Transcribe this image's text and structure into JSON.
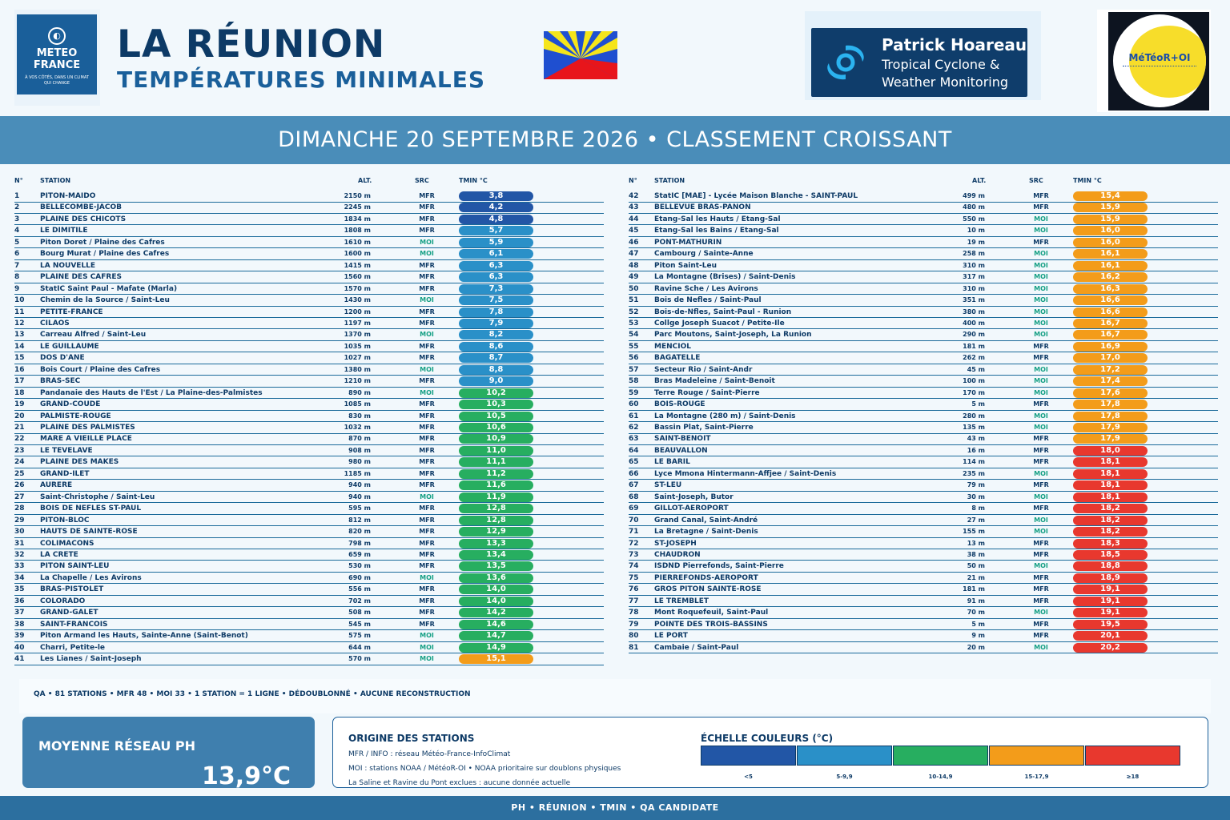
{
  "header": {
    "title": "LA RÉUNION",
    "subtitle": "TEMPÉRATURES MINIMALES",
    "meteo_france": {
      "line1": "METEO",
      "line2": "FRANCE",
      "tagline": "À VOS CÔTÉS, DANS UN CLIMAT QUI CHANGE"
    },
    "ph_logo": {
      "name": "Patrick Hoareau",
      "line2": "Tropical Cyclone &",
      "line3": "Weather Monitoring"
    },
    "moi_logo": "MéTéoR+OI"
  },
  "band_title": "DIMANCHE 20 SEPTEMBRE 2026 • CLASSEMENT CROISSANT",
  "columns": {
    "n": "N°",
    "station": "STATION",
    "alt": "ALT.",
    "src": "SRC",
    "tmin": "TMIN °C"
  },
  "colors": {
    "lt5": "#2256a6",
    "5to10": "#2a90c8",
    "10to15": "#27ae60",
    "15to18": "#f39c1a",
    "ge18": "#e8382e",
    "moi_text": "#16a085"
  },
  "stations": [
    [
      "1",
      "PITON-MAIDO",
      "2150 m",
      "MFR",
      "3,8",
      3.8
    ],
    [
      "2",
      "BELLECOMBE-JACOB",
      "2245 m",
      "MFR",
      "4,2",
      4.2
    ],
    [
      "3",
      "PLAINE DES CHICOTS",
      "1834 m",
      "MFR",
      "4,8",
      4.8
    ],
    [
      "4",
      "LE DIMITILE",
      "1808 m",
      "MFR",
      "5,7",
      5.7
    ],
    [
      "5",
      "Piton Doret / Plaine des Cafres",
      "1610 m",
      "MOI",
      "5,9",
      5.9
    ],
    [
      "6",
      "Bourg Murat / Plaine des Cafres",
      "1600 m",
      "MOI",
      "6,1",
      6.1
    ],
    [
      "7",
      "LA NOUVELLE",
      "1415 m",
      "MFR",
      "6,3",
      6.3
    ],
    [
      "8",
      "PLAINE DES CAFRES",
      "1560 m",
      "MFR",
      "6,3",
      6.3
    ],
    [
      "9",
      "StatIC Saint Paul - Mafate (Marla)",
      "1570 m",
      "MFR",
      "7,3",
      7.3
    ],
    [
      "10",
      "Chemin de la Source / Saint-Leu",
      "1430 m",
      "MOI",
      "7,5",
      7.5
    ],
    [
      "11",
      "PETITE-FRANCE",
      "1200 m",
      "MFR",
      "7,8",
      7.8
    ],
    [
      "12",
      "CILAOS",
      "1197 m",
      "MFR",
      "7,9",
      7.9
    ],
    [
      "13",
      "Carreau Alfred / Saint-Leu",
      "1370 m",
      "MOI",
      "8,2",
      8.2
    ],
    [
      "14",
      "LE GUILLAUME",
      "1035 m",
      "MFR",
      "8,6",
      8.6
    ],
    [
      "15",
      "DOS D'ANE",
      "1027 m",
      "MFR",
      "8,7",
      8.7
    ],
    [
      "16",
      "Bois Court / Plaine des Cafres",
      "1380 m",
      "MOI",
      "8,8",
      8.8
    ],
    [
      "17",
      "BRAS-SEC",
      "1210 m",
      "MFR",
      "9,0",
      9.0
    ],
    [
      "18",
      "Pandanaie des Hauts de l'Est / La Plaine-des-Palmistes",
      "890 m",
      "MOI",
      "10,2",
      10.2
    ],
    [
      "19",
      "GRAND-COUDE",
      "1085 m",
      "MFR",
      "10,3",
      10.3
    ],
    [
      "20",
      "PALMISTE-ROUGE",
      "830 m",
      "MFR",
      "10,5",
      10.5
    ],
    [
      "21",
      "PLAINE DES PALMISTES",
      "1032 m",
      "MFR",
      "10,6",
      10.6
    ],
    [
      "22",
      "MARE A VIEILLE PLACE",
      "870 m",
      "MFR",
      "10,9",
      10.9
    ],
    [
      "23",
      "LE TEVELAVE",
      "908 m",
      "MFR",
      "11,0",
      11.0
    ],
    [
      "24",
      "PLAINE DES MAKES",
      "980 m",
      "MFR",
      "11,1",
      11.1
    ],
    [
      "25",
      "GRAND-ILET",
      "1185 m",
      "MFR",
      "11,2",
      11.2
    ],
    [
      "26",
      "AURERE",
      "940 m",
      "MFR",
      "11,6",
      11.6
    ],
    [
      "27",
      "Saint-Christophe / Saint-Leu",
      "940 m",
      "MOI",
      "11,9",
      11.9
    ],
    [
      "28",
      "BOIS DE NEFLES ST-PAUL",
      "595 m",
      "MFR",
      "12,8",
      12.8
    ],
    [
      "29",
      "PITON-BLOC",
      "812 m",
      "MFR",
      "12,8",
      12.8
    ],
    [
      "30",
      "HAUTS DE SAINTE-ROSE",
      "820 m",
      "MFR",
      "12,9",
      12.9
    ],
    [
      "31",
      "COLIMACONS",
      "798 m",
      "MFR",
      "13,3",
      13.3
    ],
    [
      "32",
      "LA CRETE",
      "659 m",
      "MFR",
      "13,4",
      13.4
    ],
    [
      "33",
      "PITON SAINT-LEU",
      "530 m",
      "MFR",
      "13,5",
      13.5
    ],
    [
      "34",
      "La Chapelle / Les Avirons",
      "690 m",
      "MOI",
      "13,6",
      13.6
    ],
    [
      "35",
      "BRAS-PISTOLET",
      "556 m",
      "MFR",
      "14,0",
      14.0
    ],
    [
      "36",
      "COLORADO",
      "702 m",
      "MFR",
      "14,0",
      14.0
    ],
    [
      "37",
      "GRAND-GALET",
      "508 m",
      "MFR",
      "14,2",
      14.2
    ],
    [
      "38",
      "SAINT-FRANCOIS",
      "545 m",
      "MFR",
      "14,6",
      14.6
    ],
    [
      "39",
      "Piton Armand les Hauts, Sainte-Anne (Saint-Benot)",
      "575 m",
      "MOI",
      "14,7",
      14.7
    ],
    [
      "40",
      "Charri, Petite-le",
      "644 m",
      "MOI",
      "14,9",
      14.9
    ],
    [
      "41",
      "Les Lianes / Saint-Joseph",
      "570 m",
      "MOI",
      "15,1",
      15.1
    ],
    [
      "42",
      "StatIC [MAE] - Lycée Maison Blanche - SAINT-PAUL",
      "499 m",
      "MFR",
      "15,4",
      15.4
    ],
    [
      "43",
      "BELLEVUE BRAS-PANON",
      "480 m",
      "MFR",
      "15,9",
      15.9
    ],
    [
      "44",
      "Etang-Sal les Hauts / Etang-Sal",
      "550 m",
      "MOI",
      "15,9",
      15.9
    ],
    [
      "45",
      "Etang-Sal les Bains / Etang-Sal",
      "10 m",
      "MOI",
      "16,0",
      16.0
    ],
    [
      "46",
      "PONT-MATHURIN",
      "19 m",
      "MFR",
      "16,0",
      16.0
    ],
    [
      "47",
      "Cambourg / Sainte-Anne",
      "258 m",
      "MOI",
      "16,1",
      16.1
    ],
    [
      "48",
      "Piton Saint-Leu",
      "310 m",
      "MOI",
      "16,1",
      16.1
    ],
    [
      "49",
      "La Montagne (Brises) / Saint-Denis",
      "317 m",
      "MOI",
      "16,2",
      16.2
    ],
    [
      "50",
      "Ravine Sche / Les Avirons",
      "310 m",
      "MOI",
      "16,3",
      16.3
    ],
    [
      "51",
      "Bois de Nefles / Saint-Paul",
      "351 m",
      "MOI",
      "16,6",
      16.6
    ],
    [
      "52",
      "Bois-de-Nfles, Saint-Paul - Runion",
      "380 m",
      "MOI",
      "16,6",
      16.6
    ],
    [
      "53",
      "Collge Joseph Suacot / Petite-Ile",
      "400 m",
      "MOI",
      "16,7",
      16.7
    ],
    [
      "54",
      "Parc  Moutons, Saint-Joseph, La Runion",
      "290 m",
      "MOI",
      "16,7",
      16.7
    ],
    [
      "55",
      "MENCIOL",
      "181 m",
      "MFR",
      "16,9",
      16.9
    ],
    [
      "56",
      "BAGATELLE",
      "262 m",
      "MFR",
      "17,0",
      17.0
    ],
    [
      "57",
      "Secteur Rio / Saint-Andr",
      "45 m",
      "MOI",
      "17,2",
      17.2
    ],
    [
      "58",
      "Bras Madeleine / Saint-Benoit",
      "100 m",
      "MOI",
      "17,4",
      17.4
    ],
    [
      "59",
      "Terre Rouge / Saint-Pierre",
      "170 m",
      "MOI",
      "17,6",
      17.6
    ],
    [
      "60",
      "BOIS-ROUGE",
      "5 m",
      "MFR",
      "17,8",
      17.8
    ],
    [
      "61",
      "La Montagne (280 m) / Saint-Denis",
      "280 m",
      "MOI",
      "17,8",
      17.8
    ],
    [
      "62",
      "Bassin Plat, Saint-Pierre",
      "135 m",
      "MOI",
      "17,9",
      17.9
    ],
    [
      "63",
      "SAINT-BENOIT",
      "43 m",
      "MFR",
      "17,9",
      17.9
    ],
    [
      "64",
      "BEAUVALLON",
      "16 m",
      "MFR",
      "18,0",
      18.0
    ],
    [
      "65",
      "LE BARIL",
      "114 m",
      "MFR",
      "18,1",
      18.1
    ],
    [
      "66",
      "Lyce Mmona Hintermann-Affjee / Saint-Denis",
      "235 m",
      "MOI",
      "18,1",
      18.1
    ],
    [
      "67",
      "ST-LEU",
      "79 m",
      "MFR",
      "18,1",
      18.1
    ],
    [
      "68",
      "Saint-Joseph, Butor",
      "30 m",
      "MOI",
      "18,1",
      18.1
    ],
    [
      "69",
      "GILLOT-AEROPORT",
      "8 m",
      "MFR",
      "18,2",
      18.2
    ],
    [
      "70",
      "Grand Canal, Saint-André",
      "27 m",
      "MOI",
      "18,2",
      18.2
    ],
    [
      "71",
      "La Bretagne / Saint-Denis",
      "155 m",
      "MOI",
      "18,2",
      18.2
    ],
    [
      "72",
      "ST-JOSEPH",
      "13 m",
      "MFR",
      "18,3",
      18.3
    ],
    [
      "73",
      "CHAUDRON",
      "38 m",
      "MFR",
      "18,5",
      18.5
    ],
    [
      "74",
      "ISDND Pierrefonds, Saint-Pierre",
      "50 m",
      "MOI",
      "18,8",
      18.8
    ],
    [
      "75",
      "PIERREFONDS-AEROPORT",
      "21 m",
      "MFR",
      "18,9",
      18.9
    ],
    [
      "76",
      "GROS PITON SAINTE-ROSE",
      "181 m",
      "MFR",
      "19,1",
      19.1
    ],
    [
      "77",
      "LE TREMBLET",
      "91 m",
      "MFR",
      "19,1",
      19.1
    ],
    [
      "78",
      "Mont Roquefeuil, Saint-Paul",
      "70 m",
      "MOI",
      "19,1",
      19.1
    ],
    [
      "79",
      "POINTE DES TROIS-BASSINS",
      "5 m",
      "MFR",
      "19,5",
      19.5
    ],
    [
      "80",
      "LE PORT",
      "9 m",
      "MFR",
      "20,1",
      20.1
    ],
    [
      "81",
      "Cambaie / Saint-Paul",
      "20 m",
      "MOI",
      "20,2",
      20.2
    ]
  ],
  "qa_line": "QA • 81 STATIONS • MFR 48 • MOI 33 • 1 STATION = 1 LIGNE • DÉDOUBLONNÉ • AUCUNE RECONSTRUCTION",
  "average": {
    "label": "MOYENNE RÉSEAU PH",
    "value": "13,9°C"
  },
  "origin": {
    "title": "ORIGINE DES STATIONS",
    "lines": [
      "MFR / INFO : réseau Météo-France-InfoClimat",
      "MOI : stations NOAA / MétéoR-OI • NOAA prioritaire sur doublons physiques",
      "La Saline et Ravine du Pont exclues : aucune donnée actuelle"
    ]
  },
  "scale": {
    "title": "ÉCHELLE COULEURS (°C)",
    "items": [
      {
        "label": "<5",
        "color": "#2256a6"
      },
      {
        "label": "5-9,9",
        "color": "#2a90c8"
      },
      {
        "label": "10-14,9",
        "color": "#27ae60"
      },
      {
        "label": "15-17,9",
        "color": "#f39c1a"
      },
      {
        "label": "≥18",
        "color": "#e8382e"
      }
    ]
  },
  "footer": "PH • RÉUNION • TMIN • QA CANDIDATE"
}
